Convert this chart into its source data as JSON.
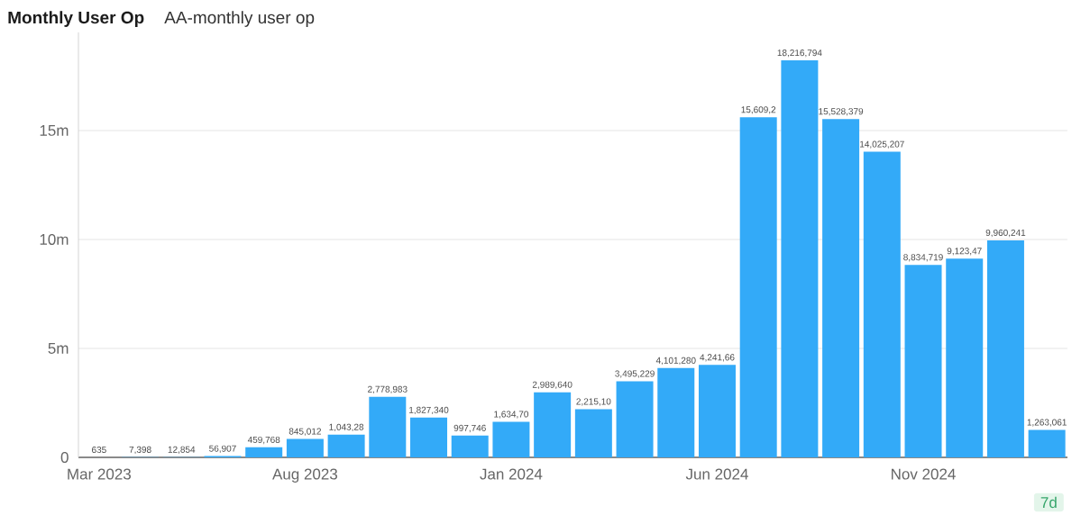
{
  "chart_data": {
    "type": "bar",
    "title": "Monthly User Op",
    "subtitle": "AA-monthly user op",
    "categories": [
      "Mar 2023",
      null,
      null,
      null,
      null,
      "Aug 2023",
      null,
      null,
      null,
      null,
      "Jan 2024",
      null,
      null,
      null,
      null,
      "Jun 2024",
      null,
      null,
      null,
      null,
      "Nov 2024",
      null,
      null,
      null
    ],
    "values": [
      635,
      7398,
      12854,
      56907,
      459768,
      845012,
      1043280,
      2778983,
      1827340,
      997746,
      1634700,
      2989640,
      2215100,
      3495229,
      4101280,
      4241660,
      15609200,
      18216794,
      15528379,
      14025207,
      8834719,
      9123470,
      9960241,
      1263061
    ],
    "value_labels": [
      "635",
      "7,398",
      "12,854",
      "56,907",
      "459,768",
      "845,012",
      "1,043,28",
      "2,778,983",
      "1,827,340",
      "997,746",
      "1,634,70",
      "2,989,640",
      "2,215,10",
      "3,495,229",
      "4,101,280",
      "4,241,66",
      "15,609,2",
      "18,216,794",
      "15,528,379",
      "14,025,207",
      "8,834,719",
      "9,123,47",
      "9,960,241",
      "1,263,061"
    ],
    "color": "#33aaf8",
    "ylim": [
      0,
      19500000
    ],
    "yticks": [
      0,
      {
        "value": 5000000,
        "label": "5m"
      },
      {
        "value": 10000000,
        "label": "10m"
      },
      {
        "value": 15000000,
        "label": "15m"
      }
    ],
    "grid": "y",
    "annotations": [
      "7d"
    ]
  }
}
